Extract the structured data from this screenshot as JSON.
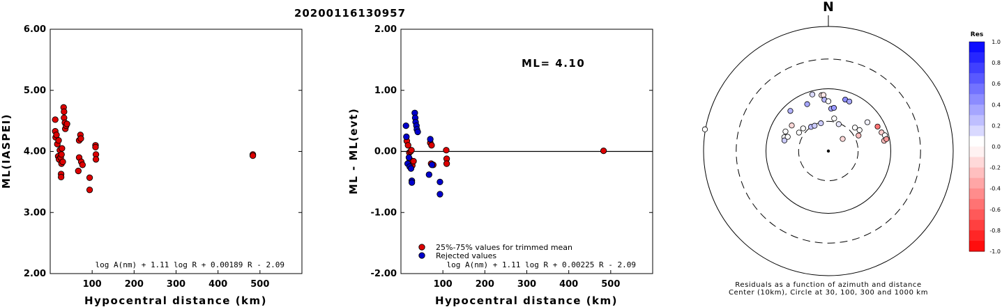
{
  "event_id": "20200116130957",
  "chart_data": [
    {
      "type": "scatter",
      "title": "",
      "xlabel": "Hypocentral distance (km)",
      "ylabel": "ML(IASPEI)",
      "xlim": [
        0,
        600
      ],
      "ylim": [
        2.0,
        6.0
      ],
      "xticks": [
        "100",
        "200",
        "300",
        "400",
        "500"
      ],
      "yticks": [
        "2.00",
        "3.00",
        "4.00",
        "5.00",
        "6.00"
      ],
      "grid": false,
      "annotation": "log A(nm) + 1.11 log R + 0.00189 R - 2.09",
      "series": [
        {
          "color": "#dd0000",
          "points": [
            [
              12,
              4.52
            ],
            [
              12,
              4.33
            ],
            [
              13,
              4.23
            ],
            [
              15,
              4.27
            ],
            [
              17,
              4.12
            ],
            [
              19,
              3.92
            ],
            [
              20,
              4.18
            ],
            [
              21,
              3.87
            ],
            [
              23,
              4.02
            ],
            [
              25,
              3.9
            ],
            [
              26,
              3.63
            ],
            [
              26,
              3.58
            ],
            [
              27,
              3.8
            ],
            [
              27,
              3.95
            ],
            [
              28,
              4.05
            ],
            [
              30,
              3.83
            ],
            [
              32,
              4.72
            ],
            [
              33,
              4.65
            ],
            [
              33,
              4.55
            ],
            [
              35,
              4.47
            ],
            [
              36,
              4.37
            ],
            [
              38,
              4.42
            ],
            [
              40,
              4.45
            ],
            [
              67,
              3.68
            ],
            [
              69,
              4.18
            ],
            [
              69,
              3.9
            ],
            [
              72,
              4.27
            ],
            [
              73,
              4.21
            ],
            [
              74,
              3.83
            ],
            [
              77,
              3.78
            ],
            [
              94,
              3.57
            ],
            [
              94,
              3.37
            ],
            [
              108,
              4.1
            ],
            [
              108,
              4.07
            ],
            [
              109,
              3.95
            ],
            [
              109,
              3.87
            ],
            [
              483,
              3.95
            ],
            [
              483,
              3.93
            ]
          ]
        }
      ]
    },
    {
      "type": "scatter",
      "title": "",
      "xlabel": "Hypocentral distance (km)",
      "ylabel": "ML - ML(evt)",
      "xlim": [
        0,
        600
      ],
      "ylim": [
        -2.0,
        2.0
      ],
      "xticks": [
        "100",
        "200",
        "300",
        "400",
        "500"
      ],
      "yticks": [
        "-2.00",
        "-1.00",
        "0.00",
        "1.00",
        "2.00"
      ],
      "grid": false,
      "reference_line": 0.0,
      "ml_label": "ML= 4.10",
      "annotation": "log A(nm) + 1.11 log R + 0.00225 R - 2.09",
      "legend": [
        "25%-75% values for trimmed mean",
        "Rejected values"
      ],
      "series": [
        {
          "name": "25%-75% values for trimmed mean",
          "color": "#dd0000",
          "points": [
            [
              14,
              0.17
            ],
            [
              17,
              0.1
            ],
            [
              20,
              -0.02
            ],
            [
              21,
              -0.13
            ],
            [
              23,
              0.0
            ],
            [
              25,
              0.02
            ],
            [
              27,
              -0.23
            ],
            [
              30,
              -0.16
            ],
            [
              70,
              0.14
            ],
            [
              72,
              -0.2
            ],
            [
              73,
              0.1
            ],
            [
              77,
              -0.22
            ],
            [
              108,
              0.02
            ],
            [
              109,
              -0.12
            ],
            [
              109,
              -0.2
            ],
            [
              483,
              0.01
            ]
          ]
        },
        {
          "name": "Rejected values",
          "color": "#0000cc",
          "points": [
            [
              12,
              0.42
            ],
            [
              13,
              0.24
            ],
            [
              16,
              -0.2
            ],
            [
              19,
              -0.1
            ],
            [
              21,
              -0.25
            ],
            [
              24,
              -0.28
            ],
            [
              26,
              -0.48
            ],
            [
              26,
              -0.51
            ],
            [
              33,
              0.63
            ],
            [
              34,
              0.55
            ],
            [
              35,
              0.48
            ],
            [
              37,
              0.42
            ],
            [
              38,
              0.36
            ],
            [
              40,
              0.32
            ],
            [
              67,
              -0.38
            ],
            [
              70,
              0.2
            ],
            [
              74,
              -0.22
            ],
            [
              93,
              -0.5
            ],
            [
              93,
              -0.7
            ]
          ]
        }
      ]
    },
    {
      "type": "scatter",
      "title": "N",
      "caption_line1": "Residuals as a function of azimuth and distance",
      "caption_line2": "Center (10km), Circle at 30, 100, 300 and 1000 km",
      "colorbar_title": "Res",
      "colorbar_ticks": [
        "1.0",
        "0.8",
        "0.6",
        "0.4",
        "0.2",
        "0.0",
        "-0.2",
        "-0.4",
        "-0.6",
        "-0.8",
        "-1.0"
      ],
      "colorbar_range": [
        -1.0,
        1.0
      ],
      "color_positive": "#0000ff",
      "color_negative": "#ff0000",
      "rings_km": [
        30,
        100,
        300,
        1000
      ],
      "stations": [
        {
          "az": -15.8,
          "dist_km": 88,
          "res": 0.15
        },
        {
          "az": -7.0,
          "dist_km": 80,
          "res": -0.1
        },
        {
          "az": -5.0,
          "dist_km": 80,
          "res": -0.1
        },
        {
          "az": -24.3,
          "dist_km": 67,
          "res": 0.35
        },
        {
          "az": -43.4,
          "dist_km": 77,
          "res": 0.3
        },
        {
          "az": -65.4,
          "dist_km": 57,
          "res": 0.0
        },
        {
          "az": -55.0,
          "dist_km": 52,
          "res": -0.15
        },
        {
          "az": -72.5,
          "dist_km": 55,
          "res": 0.0
        },
        {
          "az": -76.4,
          "dist_km": 53,
          "res": 0.2
        },
        {
          "az": -70.7,
          "dist_km": 49,
          "res": 0.0
        },
        {
          "az": -57.8,
          "dist_km": 36,
          "res": 0.0
        },
        {
          "az": -48.0,
          "dist_km": 35,
          "res": 0.0
        },
        {
          "az": -35.6,
          "dist_km": 30,
          "res": 0.25
        },
        {
          "az": -28.5,
          "dist_km": 29,
          "res": 0.2
        },
        {
          "az": -15.0,
          "dist_km": 29,
          "res": 0.2
        },
        {
          "az": -4.4,
          "dist_km": 67,
          "res": 0.3
        },
        {
          "az": 0.0,
          "dist_km": 63,
          "res": 0.0
        },
        {
          "az": 3.8,
          "dist_km": 48,
          "res": 0.35
        },
        {
          "az": 7.3,
          "dist_km": 50,
          "res": 0.4
        },
        {
          "az": 10.1,
          "dist_km": 34,
          "res": 0.0
        },
        {
          "az": 18.1,
          "dist_km": 74,
          "res": 0.45
        },
        {
          "az": 22.9,
          "dist_km": 73,
          "res": 0.35
        },
        {
          "az": 21.0,
          "dist_km": 29,
          "res": 0.1
        },
        {
          "az": 49.6,
          "dist_km": 20,
          "res": -0.15
        },
        {
          "az": 48.5,
          "dist_km": 37,
          "res": 0.0
        },
        {
          "az": 62.7,
          "dist_km": 35,
          "res": -0.25
        },
        {
          "az": 56.0,
          "dist_km": 40,
          "res": 0.0
        },
        {
          "az": 53.5,
          "dist_km": 60,
          "res": 0.05
        },
        {
          "az": 63.5,
          "dist_km": 76,
          "res": -0.55
        },
        {
          "az": 70.7,
          "dist_km": 80,
          "res": -0.2
        },
        {
          "az": 74.4,
          "dist_km": 87,
          "res": 0.0
        },
        {
          "az": 79.5,
          "dist_km": 81,
          "res": -0.25
        },
        {
          "az": 78.3,
          "dist_km": 89,
          "res": -0.4
        },
        {
          "az": -80.0,
          "dist_km": 1020,
          "res": 0.0
        }
      ]
    }
  ]
}
